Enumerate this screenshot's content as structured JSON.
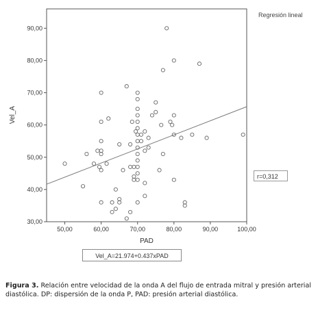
{
  "chart_data": {
    "type": "scatter",
    "xlabel": "PAD",
    "ylabel": "Vel_A",
    "xlim": [
      45,
      100
    ],
    "ylim": [
      30,
      96
    ],
    "x_ticks": [
      50,
      60,
      70,
      80,
      90,
      100
    ],
    "y_ticks": [
      30,
      40,
      50,
      60,
      70,
      80,
      90
    ],
    "x_tick_labels": [
      "50,00",
      "60,00",
      "70,00",
      "80,00",
      "90,00",
      "100,00"
    ],
    "y_tick_labels": [
      "30,00",
      "40,00",
      "50,00",
      "60,00",
      "70,00",
      "80,00",
      "90,00"
    ],
    "grid": false,
    "legend_text": "Regresión lineal",
    "r_label": "r=0,312",
    "equation": "Vel_A=21.974+0.437xPAD",
    "regression": {
      "intercept": 21.974,
      "slope": 0.437
    },
    "points": [
      [
        50,
        48
      ],
      [
        55,
        41
      ],
      [
        56,
        51
      ],
      [
        58,
        48
      ],
      [
        59,
        52
      ],
      [
        59.5,
        47
      ],
      [
        60,
        36
      ],
      [
        60,
        46
      ],
      [
        60,
        51
      ],
      [
        60,
        52
      ],
      [
        60,
        55
      ],
      [
        60,
        61
      ],
      [
        60,
        70
      ],
      [
        61.5,
        48
      ],
      [
        62,
        62
      ],
      [
        63,
        33
      ],
      [
        63,
        36
      ],
      [
        64,
        34
      ],
      [
        64,
        40
      ],
      [
        65,
        36
      ],
      [
        65,
        37
      ],
      [
        65,
        54
      ],
      [
        66,
        46
      ],
      [
        67,
        31
      ],
      [
        67,
        72
      ],
      [
        68,
        33
      ],
      [
        68,
        47
      ],
      [
        68,
        54
      ],
      [
        68.5,
        61
      ],
      [
        69,
        43
      ],
      [
        69,
        44
      ],
      [
        69,
        47
      ],
      [
        69.5,
        58
      ],
      [
        70,
        36
      ],
      [
        70,
        43
      ],
      [
        70,
        45
      ],
      [
        70,
        47
      ],
      [
        70,
        49
      ],
      [
        70,
        51
      ],
      [
        70,
        53
      ],
      [
        70,
        55
      ],
      [
        70,
        57
      ],
      [
        70,
        59
      ],
      [
        70,
        61
      ],
      [
        70,
        63
      ],
      [
        70,
        65
      ],
      [
        70,
        68
      ],
      [
        70,
        70
      ],
      [
        71,
        55
      ],
      [
        71,
        57
      ],
      [
        72,
        38
      ],
      [
        72,
        42
      ],
      [
        72,
        52
      ],
      [
        72,
        58
      ],
      [
        73,
        53
      ],
      [
        73,
        56
      ],
      [
        74,
        63
      ],
      [
        75,
        67
      ],
      [
        75,
        64
      ],
      [
        76,
        46
      ],
      [
        76.5,
        60
      ],
      [
        77,
        51
      ],
      [
        77,
        77
      ],
      [
        78,
        90
      ],
      [
        79,
        61
      ],
      [
        79.5,
        60
      ],
      [
        80,
        43
      ],
      [
        80,
        57
      ],
      [
        80,
        63
      ],
      [
        80,
        80
      ],
      [
        82,
        56
      ],
      [
        83,
        35
      ],
      [
        83,
        36
      ],
      [
        85,
        57
      ],
      [
        87,
        79
      ],
      [
        89,
        56
      ],
      [
        99,
        57
      ]
    ]
  },
  "caption": {
    "label": "Figura 3.",
    "text": " Relación entre velocidad de la onda A del flujo de entrada mitral y presión arterial diastólica. DP: dispersión de la onda P, PAD: presión arterial diastólica."
  }
}
